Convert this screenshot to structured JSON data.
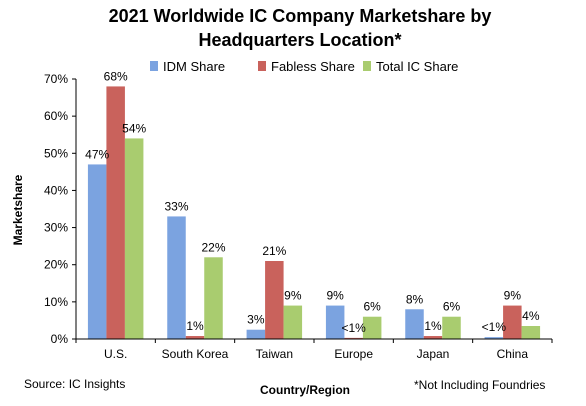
{
  "chart_data": {
    "type": "bar",
    "title_line1": "2021 Worldwide IC Company Marketshare by",
    "title_line2": "Headquarters Location*",
    "xlabel": "Country/Region",
    "ylabel": "Marketshare",
    "categories": [
      "U.S.",
      "South Korea",
      "Taiwan",
      "Europe",
      "Japan",
      "China"
    ],
    "ylim": [
      0,
      70
    ],
    "yticks": [
      "0%",
      "10%",
      "20%",
      "30%",
      "40%",
      "50%",
      "60%",
      "70%"
    ],
    "grid": false,
    "legend_position": "top",
    "series": [
      {
        "name": "IDM Share",
        "color": "#7ba3e0",
        "values": [
          47,
          33,
          2.5,
          9,
          8,
          0.5
        ],
        "labels": [
          "47%",
          "33%",
          "3%",
          "9%",
          "8%",
          "<1%"
        ]
      },
      {
        "name": "Fabless Share",
        "color": "#c9625c",
        "values": [
          68,
          0.8,
          21,
          0.3,
          0.8,
          9
        ],
        "labels": [
          "68%",
          "1%",
          "21%",
          "<1%",
          "1%",
          "9%"
        ]
      },
      {
        "name": "Total IC Share",
        "color": "#a9cc6f",
        "values": [
          54,
          22,
          9,
          6,
          6,
          3.5
        ],
        "labels": [
          "54%",
          "22%",
          "9%",
          "6%",
          "6%",
          "4%"
        ]
      }
    ]
  },
  "footer": {
    "source": "Source: IC Insights",
    "note": "*Not Including Foundries"
  }
}
